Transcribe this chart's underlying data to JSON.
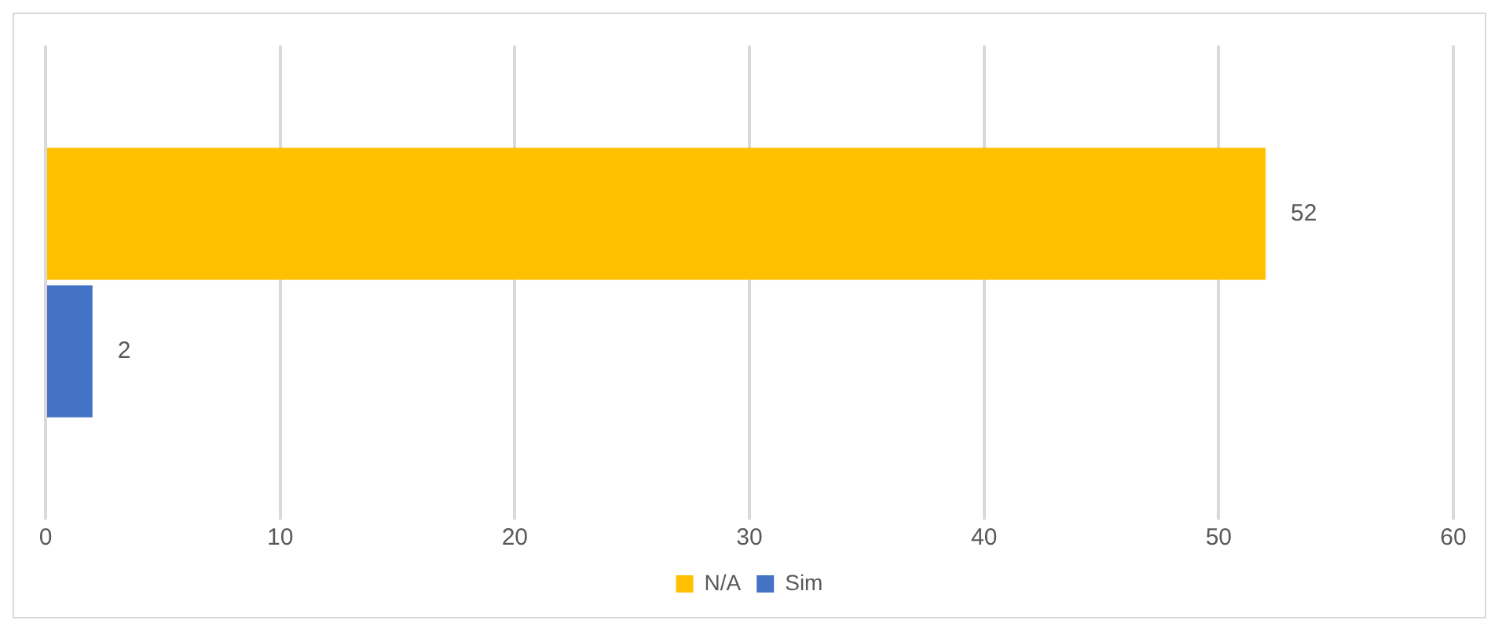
{
  "chart_data": {
    "type": "bar",
    "orientation": "horizontal",
    "categories": [
      null
    ],
    "series": [
      {
        "name": "N/A",
        "color": "#ffc000",
        "values": [
          52
        ]
      },
      {
        "name": "Sim",
        "color": "#4472c4",
        "values": [
          2
        ]
      }
    ],
    "xlim": [
      0,
      60
    ],
    "xticks": [
      0,
      10,
      20,
      30,
      40,
      50,
      60
    ],
    "grid": "x",
    "legend": "bottom",
    "data_labels": true,
    "tick_labels": "x"
  }
}
